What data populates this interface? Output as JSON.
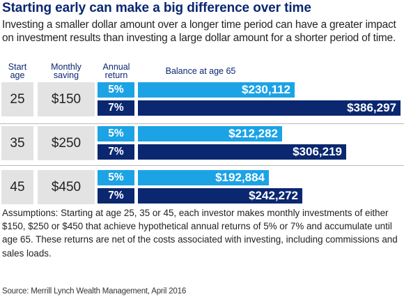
{
  "title": "Starting early can make a big difference over time",
  "subtitle": "Investing a smaller dollar amount over a longer time period can have a greater impact on investment results than investing a large dollar amount for a shorter period of time.",
  "headers": {
    "start_age": [
      "Start",
      "age"
    ],
    "monthly_saving": [
      "Monthly",
      "saving"
    ],
    "annual_return": [
      "Annual",
      "return"
    ],
    "balance": "Balance at age 65"
  },
  "chart_data": {
    "type": "bar",
    "orientation": "horizontal",
    "title": "Starting early can make a big difference over time",
    "value_label": "Balance at age 65",
    "rows": [
      {
        "start_age": "25",
        "monthly_saving": "$150",
        "bars": [
          {
            "rate": "5%",
            "value": 230112,
            "label": "$230,112"
          },
          {
            "rate": "7%",
            "value": 386297,
            "label": "$386,297"
          }
        ]
      },
      {
        "start_age": "35",
        "monthly_saving": "$250",
        "bars": [
          {
            "rate": "5%",
            "value": 212282,
            "label": "$212,282"
          },
          {
            "rate": "7%",
            "value": 306219,
            "label": "$306,219"
          }
        ]
      },
      {
        "start_age": "45",
        "monthly_saving": "$450",
        "bars": [
          {
            "rate": "5%",
            "value": 192884,
            "label": "$192,884"
          },
          {
            "rate": "7%",
            "value": 242272,
            "label": "$242,272"
          }
        ]
      }
    ]
  },
  "colors": {
    "return_5": "#1ca3e6",
    "return_7": "#0a2770",
    "title": "#0a2770",
    "box": "#e3e3e3"
  },
  "assumptions": "Assumptions: Starting at age 25, 35 or 45, each investor makes monthly investments of either $150, $250 or $450 that achieve hypothetical annual returns of 5% or 7% and accumulate until age 65. These returns are net of the costs associated with investing, including commissions and sales loads.",
  "source": "Source: Merrill Lynch Wealth Management, April 2016"
}
